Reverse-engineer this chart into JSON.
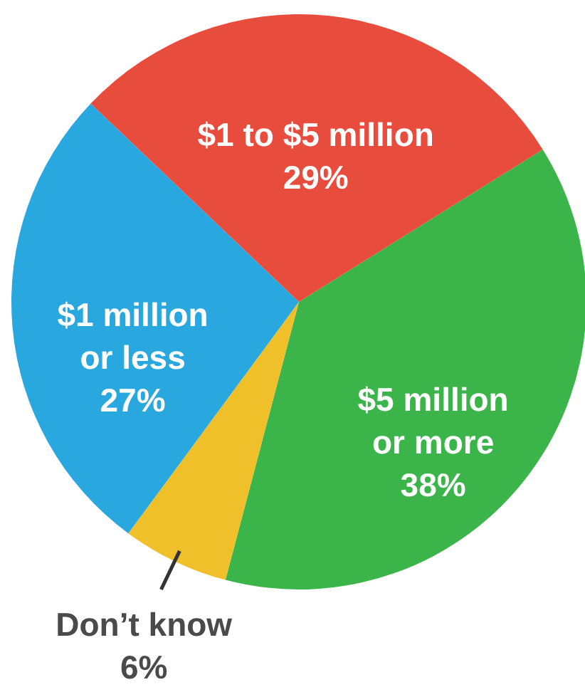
{
  "chart_data": {
    "type": "pie",
    "categories": [
      "$5 million\nor more",
      "Don’t know",
      "$1 million\nor less",
      "$1 to $5 million"
    ],
    "values": [
      38,
      6,
      27,
      29
    ],
    "value_labels": [
      "38%",
      "6%",
      "27%",
      "29%"
    ],
    "colors": [
      "#3bb44a",
      "#f0c02a",
      "#29a8e0",
      "#e84c3d"
    ]
  }
}
